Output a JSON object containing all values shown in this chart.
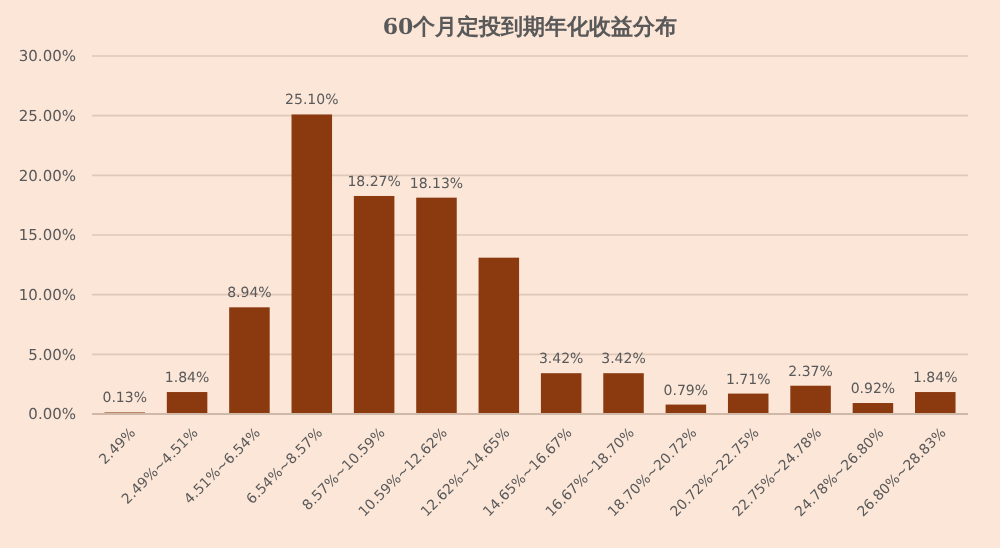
{
  "chart_data": {
    "type": "bar",
    "title": "60个月定投到期年化收益分布",
    "categories": [
      "2.49%",
      "2.49%~4.51%",
      "4.51%~6.54%",
      "6.54%~8.57%",
      "8.57%~10.59%",
      "10.59%~12.62%",
      "12.62%~14.65%",
      "14.65%~16.67%",
      "16.67%~18.70%",
      "18.70%~20.72%",
      "20.72%~22.75%",
      "22.75%~24.78%",
      "24.78%~26.80%",
      "26.80%~28.83%"
    ],
    "values": [
      0.13,
      1.84,
      8.94,
      25.1,
      18.27,
      18.13,
      13.1,
      3.42,
      3.42,
      0.79,
      1.71,
      2.37,
      0.92,
      1.84
    ],
    "value_labels": [
      "0.13%",
      "1.84%",
      "8.94%",
      "25.10%",
      "18.27%",
      "18.13%",
      null,
      "3.42%",
      "3.42%",
      "0.79%",
      "1.71%",
      "2.37%",
      "0.92%",
      "1.84%"
    ],
    "color": "#8b3a10",
    "ylim": [
      0,
      30
    ],
    "yticks": [
      {
        "value": 0,
        "label": "0.00%"
      },
      {
        "value": 5,
        "label": "5.00%"
      },
      {
        "value": 10,
        "label": "10.00%"
      },
      {
        "value": 15,
        "label": "15.00%"
      },
      {
        "value": 20,
        "label": "20.00%"
      },
      {
        "value": 25,
        "label": "25.00%"
      },
      {
        "value": 30,
        "label": "30.00%"
      }
    ],
    "grid": "y"
  }
}
